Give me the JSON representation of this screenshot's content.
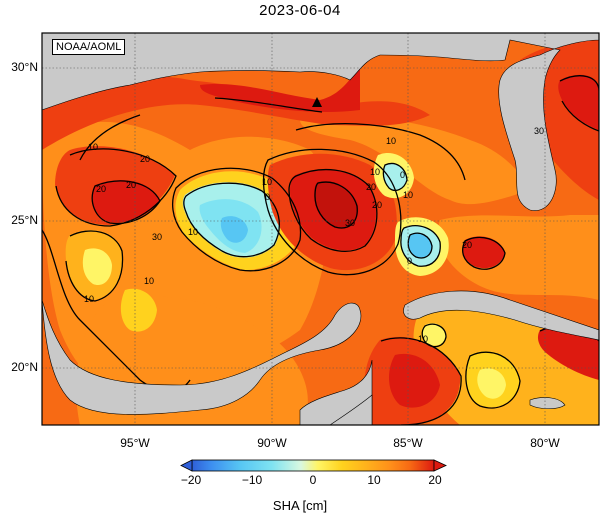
{
  "title": "2023-06-04",
  "credit": "NOAA/AOML",
  "lat_ticks": [
    {
      "value": 30,
      "label": "30°N"
    },
    {
      "value": 25,
      "label": "25°N"
    },
    {
      "value": 20,
      "label": "20°N"
    }
  ],
  "lon_ticks": [
    {
      "value": -95,
      "label": "95°W"
    },
    {
      "value": -90,
      "label": "90°W"
    },
    {
      "value": -85,
      "label": "85°W"
    },
    {
      "value": -80,
      "label": "80°W"
    }
  ],
  "colorbar": {
    "label": "SHA [cm]",
    "min": -20,
    "max": 20,
    "tick_labels": [
      "−20",
      "−10",
      "0",
      "10",
      "20"
    ],
    "colors": [
      "#2f5fd8",
      "#3d8ff0",
      "#57c6f3",
      "#7fe3f2",
      "#a8f0ec",
      "#d9f8e0",
      "#fff566",
      "#ffd21e",
      "#ffb21c",
      "#ff8f1a",
      "#f76a14",
      "#ee3f11",
      "#dd1a10"
    ]
  },
  "land_color": "#c9c9c9",
  "contour_labels": [
    "10",
    "20",
    "20",
    "30",
    "10",
    "0",
    "10",
    "10",
    "10",
    "20",
    "20",
    "30",
    "10",
    "0",
    "0",
    "10",
    "20",
    "10",
    "10",
    "20",
    "30"
  ]
}
